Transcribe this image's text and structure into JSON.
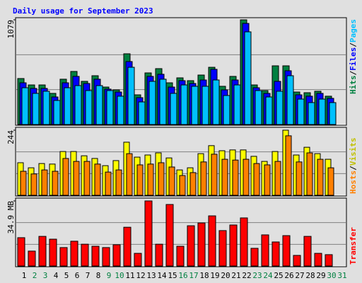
{
  "chart_data": {
    "type": "bar",
    "title": "Daily usage for September 2023",
    "categories": [
      "1",
      "2",
      "3",
      "4",
      "5",
      "6",
      "7",
      "8",
      "9",
      "10",
      "11",
      "12",
      "13",
      "14",
      "15",
      "16",
      "17",
      "18",
      "19",
      "20",
      "21",
      "22",
      "23",
      "24",
      "25",
      "26",
      "27",
      "28",
      "29",
      "30",
      "31"
    ],
    "category_colors": [
      "#000000",
      "#008040",
      "#008040",
      "#000000",
      "#000000",
      "#000000",
      "#000000",
      "#000000",
      "#008040",
      "#008040",
      "#000000",
      "#000000",
      "#000000",
      "#000000",
      "#000000",
      "#008040",
      "#008040",
      "#000000",
      "#000000",
      "#000000",
      "#000000",
      "#000000",
      "#008040",
      "#008040",
      "#000000",
      "#000000",
      "#000000",
      "#000000",
      "#000000",
      "#008040",
      "#008040"
    ],
    "legend_separator": "/",
    "panels": [
      {
        "ylim": [
          0,
          1079
        ],
        "yticks": [
          1079
        ],
        "series": [
          {
            "name": "Hits",
            "color": "#008040",
            "values": [
              474,
              408,
              408,
              321,
              467,
              547,
              445,
              503,
              386,
              357,
              729,
              306,
              532,
              576,
              430,
              481,
              452,
              510,
              590,
              394,
              496,
              1079,
              408,
              350,
              605,
              605,
              335,
              328,
              343,
              292,
              null
            ]
          },
          {
            "name": "Files",
            "color": "#0000ff",
            "values": [
              430,
              372,
              372,
              284,
              430,
              496,
              423,
              467,
              365,
              335,
              649,
              277,
              496,
              518,
              386,
              452,
              423,
              459,
              569,
              357,
              459,
              1042,
              379,
              321,
              445,
              554,
              306,
              292,
              321,
              270,
              null
            ]
          },
          {
            "name": "Pages",
            "color": "#00c0ff",
            "values": [
              379,
              321,
              343,
              248,
              379,
              401,
              350,
              401,
              350,
              292,
              590,
              233,
              445,
              467,
              321,
              408,
              394,
              394,
              459,
              299,
              408,
              955,
              350,
              284,
              343,
              503,
              262,
              226,
              262,
              226,
              null
            ]
          }
        ]
      },
      {
        "ylim": [
          0,
          244
        ],
        "yticks": [
          244
        ],
        "series": [
          {
            "name": "Hosts",
            "color": "#ff8000",
            "values": [
              90,
              80,
              95,
              90,
              138,
              127,
              127,
              117,
              87,
              95,
              156,
              114,
              117,
              122,
              106,
              74,
              85,
              125,
              154,
              135,
              132,
              135,
              119,
              114,
              127,
              223,
              125,
              159,
              135,
              103,
              null
            ]
          },
          {
            "name": "Visits",
            "color": "#ffff00",
            "values": [
              122,
              103,
              119,
              117,
              164,
              164,
              148,
              138,
              111,
              130,
              199,
              143,
              151,
              159,
              140,
              95,
              103,
              156,
              186,
              167,
              170,
              170,
              146,
              127,
              164,
              244,
              151,
              180,
              156,
              135,
              null
            ]
          }
        ]
      },
      {
        "ylim": [
          0,
          34.9
        ],
        "yticks": [
          {
            "value": 34.9,
            "label": "34.9 MB"
          }
        ],
        "series": [
          {
            "name": "Transfer",
            "color": "#ff0000",
            "values": [
              15.2,
              8.0,
              15.9,
              14.4,
              9.9,
              13.3,
              11.7,
              10.6,
              9.9,
              11.4,
              20.8,
              6.8,
              34.9,
              11.7,
              33.0,
              10.6,
              21.6,
              23.1,
              26.9,
              19.0,
              22.0,
              25.8,
              9.5,
              16.7,
              12.9,
              16.3,
              5.7,
              15.9,
              6.8,
              6.1,
              null
            ]
          }
        ]
      }
    ]
  }
}
